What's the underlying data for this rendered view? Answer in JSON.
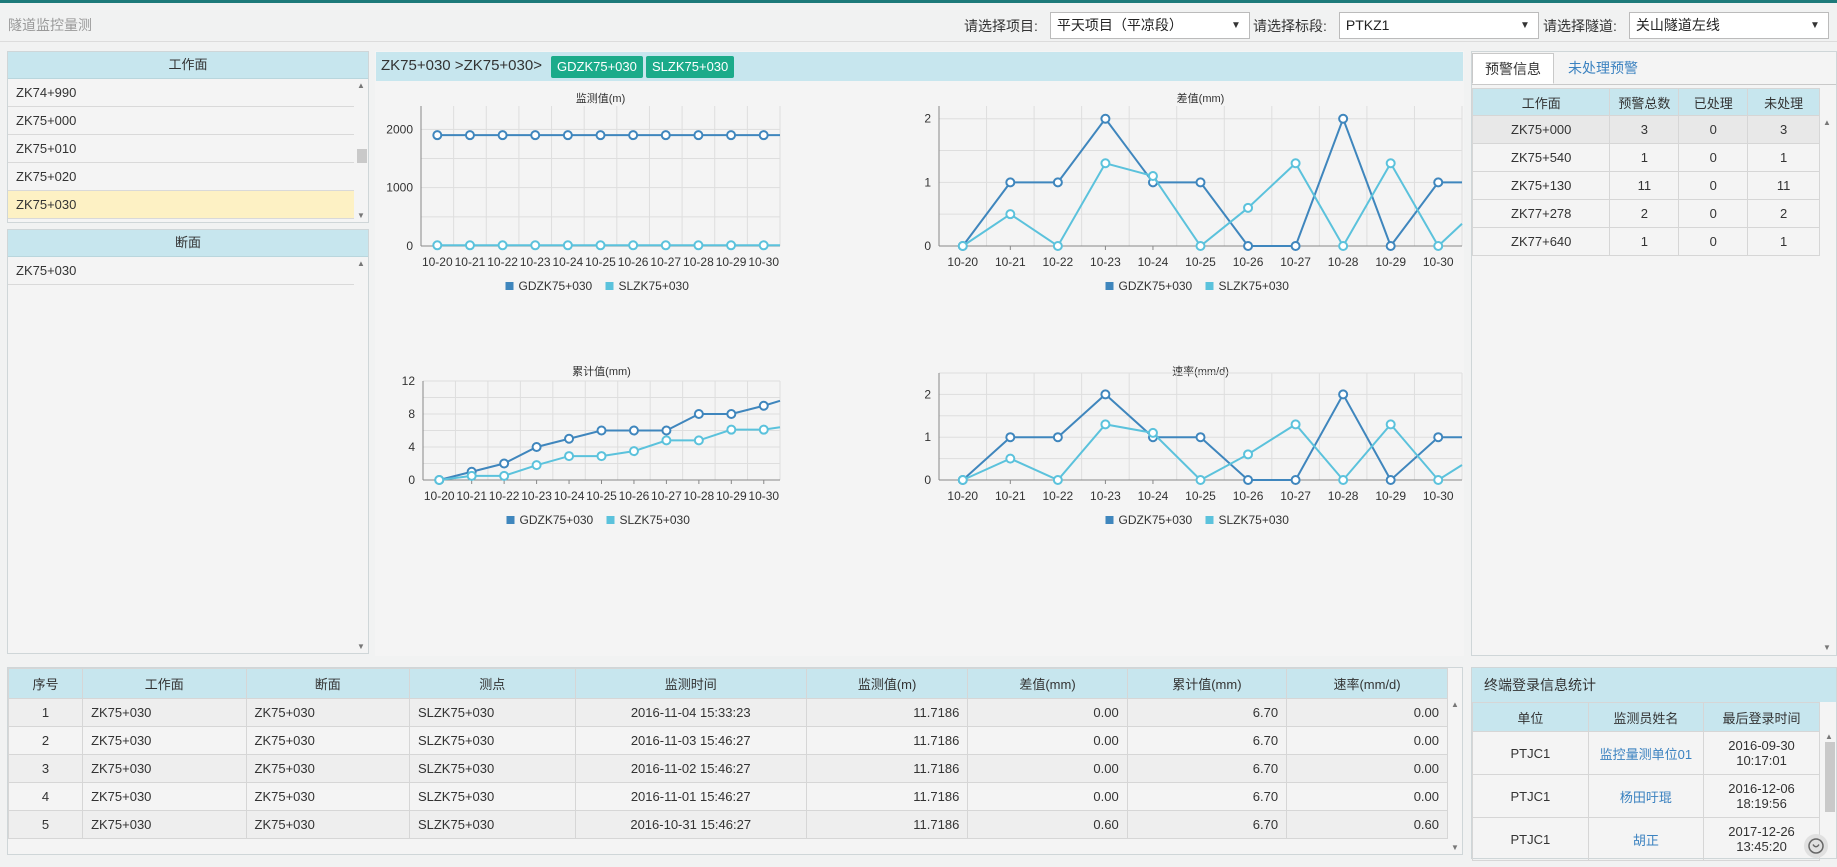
{
  "app": {
    "title": "隧道监控量测"
  },
  "filters": {
    "project": {
      "label": "请选择项目:",
      "value": "平天项目（平凉段）"
    },
    "section": {
      "label": "请选择标段:",
      "value": "PTKZ1"
    },
    "tunnel": {
      "label": "请选择隧道:",
      "value": "关山隧道左线"
    }
  },
  "work_face": {
    "header": "工作面",
    "items": [
      "ZK74+990",
      "ZK75+000",
      "ZK75+010",
      "ZK75+020",
      "ZK75+030"
    ],
    "selected": "ZK75+030"
  },
  "cross_section": {
    "header": "断面",
    "items": [
      "ZK75+030"
    ]
  },
  "chart_header": {
    "crumb": "ZK75+030 >ZK75+030>",
    "tags": [
      "GDZK75+030",
      "SLZK75+030"
    ]
  },
  "colors": {
    "series1": "#3f86bd",
    "series2": "#5bc2dc",
    "tag": "#1bab8a",
    "head": "#c7e6ee"
  },
  "chart_data": [
    {
      "type": "line",
      "title": "监测值(m)",
      "x": [
        "10-20",
        "10-21",
        "10-22",
        "10-23",
        "10-24",
        "10-25",
        "10-26",
        "10-27",
        "10-28",
        "10-29",
        "10-30"
      ],
      "yticks": [
        0,
        1000,
        2000
      ],
      "ylim": [
        0,
        2400
      ],
      "series": [
        {
          "name": "GDZK75+030",
          "values": [
            1900,
            1900,
            1900,
            1900,
            1900,
            1900,
            1900,
            1900,
            1900,
            1900,
            1900
          ],
          "tail": 1900
        },
        {
          "name": "SLZK75+030",
          "values": [
            12,
            12,
            12,
            12,
            12,
            12,
            12,
            12,
            12,
            12,
            12
          ],
          "tail": 12
        }
      ],
      "legend": "bottom"
    },
    {
      "type": "line",
      "title": "差值(mm)",
      "x": [
        "10-20",
        "10-21",
        "10-22",
        "10-23",
        "10-24",
        "10-25",
        "10-26",
        "10-27",
        "10-28",
        "10-29",
        "10-30"
      ],
      "yticks": [
        0,
        1,
        2
      ],
      "ylim": [
        0,
        2.2
      ],
      "series": [
        {
          "name": "GDZK75+030",
          "values": [
            0,
            1,
            1,
            2,
            1,
            1,
            0,
            0,
            2,
            0,
            1
          ],
          "tail": 1
        },
        {
          "name": "SLZK75+030",
          "values": [
            0,
            0.5,
            0,
            1.3,
            1.1,
            0,
            0.6,
            1.3,
            0,
            1.3,
            0
          ],
          "tail": 0.35
        }
      ],
      "legend": "bottom"
    },
    {
      "type": "line",
      "title": "累计值(mm)",
      "x": [
        "10-20",
        "10-21",
        "10-22",
        "10-23",
        "10-24",
        "10-25",
        "10-26",
        "10-27",
        "10-28",
        "10-29",
        "10-30"
      ],
      "yticks": [
        0,
        4,
        8,
        12
      ],
      "ylim": [
        0,
        12
      ],
      "series": [
        {
          "name": "GDZK75+030",
          "values": [
            0,
            1,
            2,
            4,
            5,
            6,
            6,
            6,
            8,
            8,
            9
          ],
          "tail": 9.6
        },
        {
          "name": "SLZK75+030",
          "values": [
            0,
            0.5,
            0.5,
            1.8,
            2.9,
            2.9,
            3.5,
            4.8,
            4.8,
            6.1,
            6.1
          ],
          "tail": 6.4
        }
      ],
      "legend": "bottom"
    },
    {
      "type": "line",
      "title": "速率(mm/d)",
      "x": [
        "10-20",
        "10-21",
        "10-22",
        "10-23",
        "10-24",
        "10-25",
        "10-26",
        "10-27",
        "10-28",
        "10-29",
        "10-30"
      ],
      "yticks": [
        0,
        1,
        2
      ],
      "ylim": [
        0,
        2.5
      ],
      "series": [
        {
          "name": "GDZK75+030",
          "values": [
            0,
            1,
            1,
            2,
            1,
            1,
            0,
            0,
            2,
            0,
            1
          ],
          "tail": 1
        },
        {
          "name": "SLZK75+030",
          "values": [
            0,
            0.5,
            0,
            1.3,
            1.1,
            0,
            0.6,
            1.3,
            0,
            1.3,
            0
          ],
          "tail": 0.35
        }
      ],
      "legend": "bottom"
    }
  ],
  "warning_tabs": {
    "active": "预警信息",
    "inactive": "未处理预警"
  },
  "warning_table": {
    "headers": [
      "工作面",
      "预警总数",
      "已处理",
      "未处理"
    ],
    "rows": [
      [
        "ZK75+000",
        "3",
        "0",
        "3"
      ],
      [
        "ZK75+540",
        "1",
        "0",
        "1"
      ],
      [
        "ZK75+130",
        "11",
        "0",
        "11"
      ],
      [
        "ZK77+278",
        "2",
        "0",
        "2"
      ],
      [
        "ZK77+640",
        "1",
        "0",
        "1"
      ]
    ]
  },
  "data_table": {
    "headers": [
      "序号",
      "工作面",
      "断面",
      "测点",
      "监测时间",
      "监测值(m)",
      "差值(mm)",
      "累计值(mm)",
      "速率(mm/d)"
    ],
    "rows": [
      [
        "1",
        "ZK75+030",
        "ZK75+030",
        "SLZK75+030",
        "2016-11-04 15:33:23",
        "11.7186",
        "0.00",
        "6.70",
        "0.00"
      ],
      [
        "2",
        "ZK75+030",
        "ZK75+030",
        "SLZK75+030",
        "2016-11-03 15:46:27",
        "11.7186",
        "0.00",
        "6.70",
        "0.00"
      ],
      [
        "3",
        "ZK75+030",
        "ZK75+030",
        "SLZK75+030",
        "2016-11-02 15:46:27",
        "11.7186",
        "0.00",
        "6.70",
        "0.00"
      ],
      [
        "4",
        "ZK75+030",
        "ZK75+030",
        "SLZK75+030",
        "2016-11-01 15:46:27",
        "11.7186",
        "0.00",
        "6.70",
        "0.00"
      ],
      [
        "5",
        "ZK75+030",
        "ZK75+030",
        "SLZK75+030",
        "2016-10-31 15:46:27",
        "11.7186",
        "0.60",
        "6.70",
        "0.60"
      ]
    ]
  },
  "login_stats": {
    "title": "终端登录信息统计",
    "headers": [
      "单位",
      "监测员姓名",
      "最后登录时间"
    ],
    "rows": [
      {
        "unit": "PTJC1",
        "name": "监控量测单位01",
        "date": "2016-09-30",
        "time": "10:17:01"
      },
      {
        "unit": "PTJC1",
        "name": "杨田吁琨",
        "date": "2016-12-06",
        "time": "18:19:56"
      },
      {
        "unit": "PTJC1",
        "name": "胡正",
        "date": "2017-12-26",
        "time": "13:45:20"
      }
    ]
  }
}
